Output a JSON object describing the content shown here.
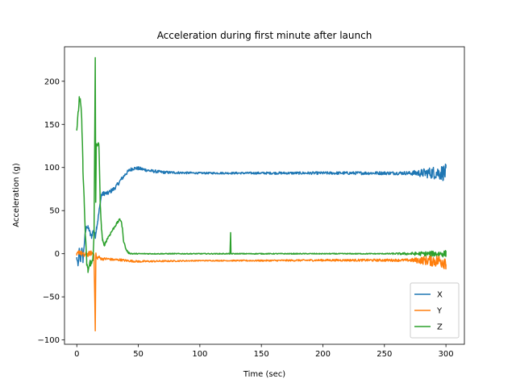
{
  "chart_data": {
    "type": "line",
    "title": "Acceleration during first minute after launch",
    "xlabel": "Time (sec)",
    "ylabel": "Acceleration (g)",
    "xlim": [
      -10,
      315
    ],
    "ylim": [
      -105,
      240
    ],
    "xticks": [
      0,
      50,
      100,
      150,
      200,
      250,
      300
    ],
    "yticks": [
      -100,
      -50,
      0,
      50,
      100,
      150,
      200
    ],
    "grid": false,
    "legend_position": "lower right",
    "series": [
      {
        "name": "X",
        "color": "#1f77b4",
        "noise": [
          [
            0,
            3
          ],
          [
            100,
            1
          ],
          [
            270,
            2
          ],
          [
            300,
            10
          ]
        ],
        "points": [
          [
            0,
            -5
          ],
          [
            1,
            -15
          ],
          [
            2,
            5
          ],
          [
            3,
            -10
          ],
          [
            4,
            8
          ],
          [
            5,
            -8
          ],
          [
            6,
            10
          ],
          [
            7,
            25
          ],
          [
            8,
            32
          ],
          [
            9,
            30
          ],
          [
            10,
            28
          ],
          [
            11,
            22
          ],
          [
            12,
            20
          ],
          [
            13,
            25
          ],
          [
            14,
            27
          ],
          [
            15,
            20
          ],
          [
            16,
            30
          ],
          [
            17,
            38
          ],
          [
            18,
            48
          ],
          [
            19,
            58
          ],
          [
            20,
            68
          ],
          [
            22,
            70
          ],
          [
            25,
            70
          ],
          [
            28,
            73
          ],
          [
            30,
            75
          ],
          [
            33,
            80
          ],
          [
            36,
            86
          ],
          [
            40,
            93
          ],
          [
            43,
            97
          ],
          [
            46,
            99
          ],
          [
            50,
            99
          ],
          [
            55,
            97.5
          ],
          [
            60,
            96
          ],
          [
            70,
            94.5
          ],
          [
            80,
            94
          ],
          [
            100,
            93.5
          ],
          [
            150,
            93.5
          ],
          [
            200,
            93.5
          ],
          [
            250,
            93.5
          ],
          [
            270,
            93.5
          ],
          [
            280,
            93.5
          ],
          [
            290,
            94
          ],
          [
            300,
            94
          ]
        ]
      },
      {
        "name": "Y",
        "color": "#ff7f0e",
        "noise": [
          [
            0,
            3
          ],
          [
            10,
            3
          ],
          [
            20,
            1.5
          ],
          [
            100,
            0.5
          ],
          [
            270,
            1.5
          ],
          [
            300,
            10
          ]
        ],
        "points": [
          [
            0,
            -2
          ],
          [
            2,
            3
          ],
          [
            4,
            0
          ],
          [
            6,
            -2
          ],
          [
            8,
            -1
          ],
          [
            10,
            0
          ],
          [
            12,
            1
          ],
          [
            14,
            0
          ],
          [
            15,
            -88
          ],
          [
            15.5,
            0
          ],
          [
            16,
            -5
          ],
          [
            18,
            -4
          ],
          [
            20,
            -6
          ],
          [
            25,
            -6
          ],
          [
            30,
            -7
          ],
          [
            35,
            -7
          ],
          [
            40,
            -8
          ],
          [
            45,
            -8.5
          ],
          [
            50,
            -9
          ],
          [
            100,
            -8
          ],
          [
            150,
            -8
          ],
          [
            200,
            -7.5
          ],
          [
            250,
            -7.5
          ],
          [
            270,
            -7.5
          ],
          [
            300,
            -8
          ]
        ]
      },
      {
        "name": "Z",
        "color": "#2ca02c",
        "noise": [
          [
            0,
            4
          ],
          [
            10,
            5
          ],
          [
            20,
            2
          ],
          [
            50,
            0.5
          ],
          [
            250,
            0.5
          ],
          [
            270,
            1.5
          ],
          [
            300,
            4
          ]
        ],
        "points": [
          [
            0,
            145
          ],
          [
            1,
            160
          ],
          [
            2,
            180
          ],
          [
            3,
            175
          ],
          [
            4,
            155
          ],
          [
            5,
            100
          ],
          [
            6,
            60
          ],
          [
            7,
            20
          ],
          [
            8,
            -10
          ],
          [
            9,
            -20
          ],
          [
            10,
            -15
          ],
          [
            11,
            -10
          ],
          [
            12,
            -12
          ],
          [
            13,
            -5
          ],
          [
            14,
            20
          ],
          [
            15,
            225
          ],
          [
            15.4,
            60
          ],
          [
            15.8,
            120
          ],
          [
            16,
            125
          ],
          [
            17,
            128
          ],
          [
            18,
            125
          ],
          [
            19,
            60
          ],
          [
            20,
            30
          ],
          [
            21,
            15
          ],
          [
            22,
            10
          ],
          [
            23,
            12
          ],
          [
            25,
            18
          ],
          [
            28,
            25
          ],
          [
            31,
            32
          ],
          [
            33,
            36
          ],
          [
            34,
            38
          ],
          [
            35,
            40
          ],
          [
            36,
            38
          ],
          [
            37,
            30
          ],
          [
            38,
            15
          ],
          [
            40,
            5
          ],
          [
            42,
            1
          ],
          [
            45,
            0
          ],
          [
            50,
            0
          ],
          [
            100,
            0
          ],
          [
            124.5,
            0
          ],
          [
            125,
            24
          ],
          [
            125.3,
            0
          ],
          [
            150,
            0
          ],
          [
            200,
            0
          ],
          [
            250,
            0
          ],
          [
            300,
            0
          ]
        ]
      }
    ]
  }
}
